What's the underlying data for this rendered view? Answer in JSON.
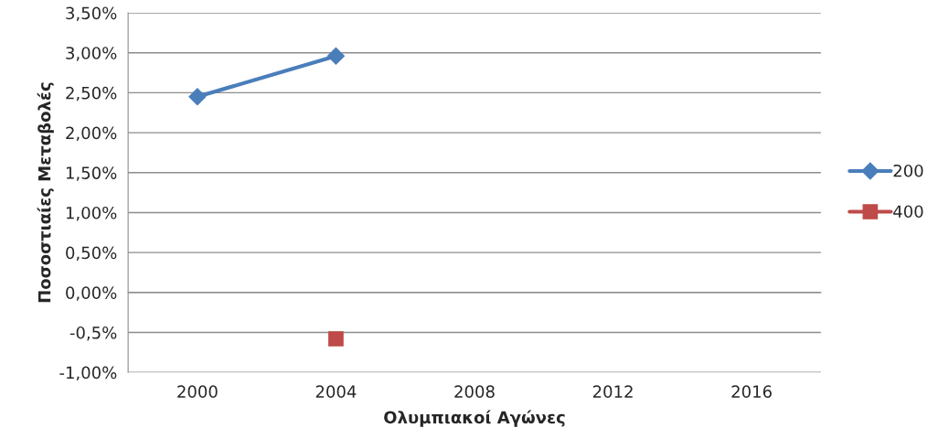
{
  "chart_data": {
    "type": "line",
    "xlabel": "Ολυμπιακοί Αγώνες",
    "ylabel": "Ποσοστιαίες Μεταβολές",
    "categories": [
      "2000",
      "2004",
      "2008",
      "2012",
      "2016"
    ],
    "series": [
      {
        "name": "200",
        "color": "#4a7ebb",
        "marker": "diamond",
        "values": [
          2.45,
          2.96,
          null,
          null,
          null
        ]
      },
      {
        "name": "400",
        "color": "#be4b48",
        "marker": "square",
        "values": [
          null,
          -0.58,
          null,
          null,
          null
        ]
      }
    ],
    "ylim": [
      -1,
      3.5
    ],
    "yticks": [
      {
        "value": -1,
        "label": "-1,00%"
      },
      {
        "value": -0.5,
        "label": "-0,5%"
      },
      {
        "value": 0,
        "label": "0,00%"
      },
      {
        "value": 0.5,
        "label": "0,50%"
      },
      {
        "value": 1,
        "label": "1,00%"
      },
      {
        "value": 1.5,
        "label": "1,50%"
      },
      {
        "value": 2,
        "label": "2,00%"
      },
      {
        "value": 2.5,
        "label": "2,50%"
      },
      {
        "value": 3,
        "label": "3,00%"
      },
      {
        "value": 3.5,
        "label": "3,50%"
      }
    ],
    "grid": "y",
    "legend": "right",
    "line_style": "solid"
  }
}
